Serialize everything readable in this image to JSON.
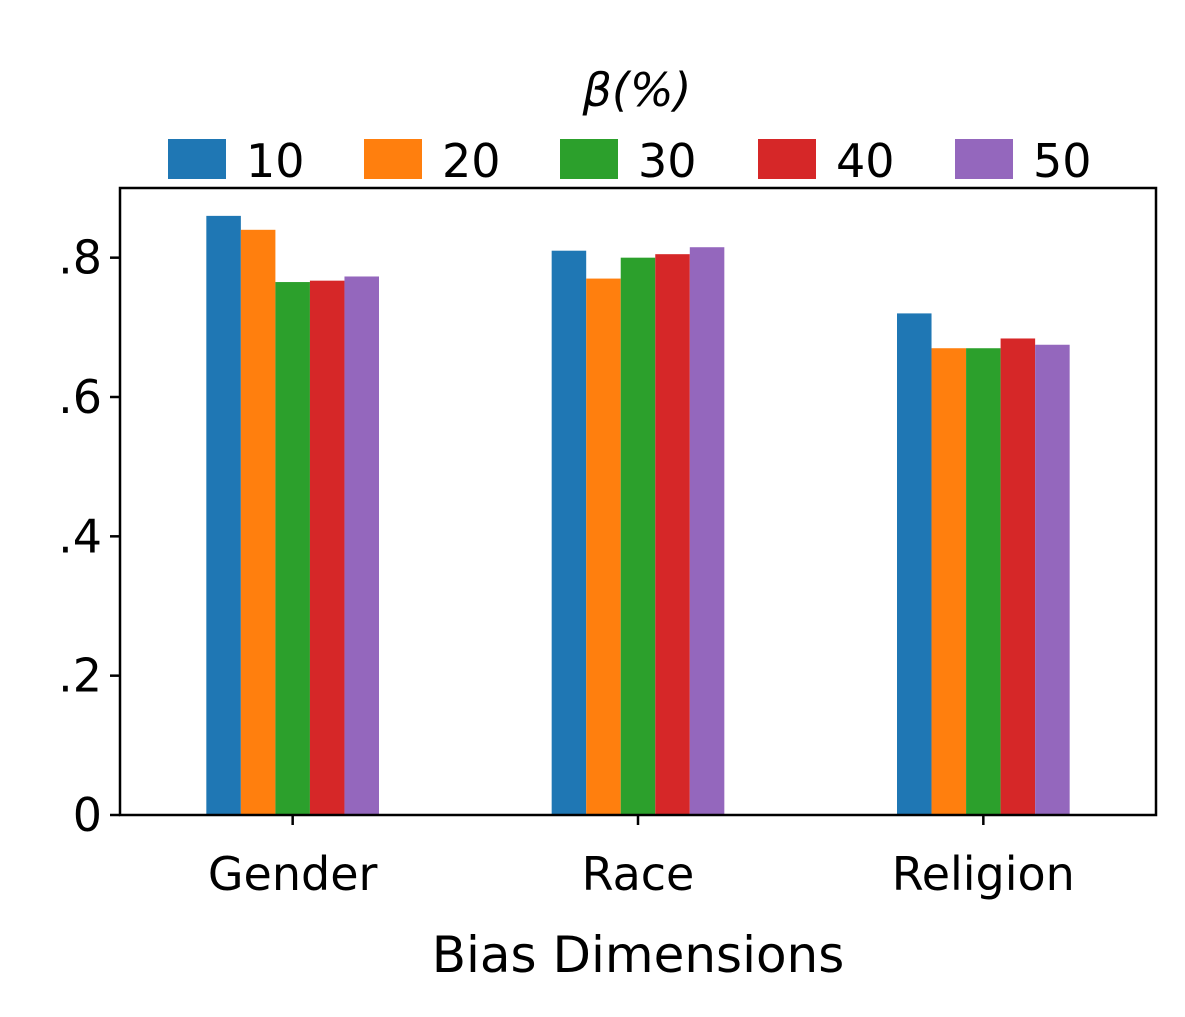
{
  "chart_data": {
    "type": "bar",
    "categories": [
      "Gender",
      "Race",
      "Religion"
    ],
    "series": [
      {
        "name": "10",
        "values": [
          0.86,
          0.81,
          0.72
        ],
        "color": "#1f77b4"
      },
      {
        "name": "20",
        "values": [
          0.84,
          0.77,
          0.67
        ],
        "color": "#ff7f0e"
      },
      {
        "name": "30",
        "values": [
          0.765,
          0.8,
          0.67
        ],
        "color": "#2ca02c"
      },
      {
        "name": "40",
        "values": [
          0.767,
          0.805,
          0.684
        ],
        "color": "#d62728"
      },
      {
        "name": "50",
        "values": [
          0.773,
          0.815,
          0.675
        ],
        "color": "#9467bd"
      }
    ],
    "legend_title": "β(%)",
    "xlabel": "Bias Dimensions",
    "ylabel": "",
    "ylim": [
      0,
      0.9
    ],
    "yticks": [
      0,
      0.2,
      0.4,
      0.6,
      0.8
    ],
    "ytick_labels": [
      "0",
      ".2",
      ".4",
      ".6",
      ".8"
    ],
    "legend_position": "top",
    "grid": false
  }
}
